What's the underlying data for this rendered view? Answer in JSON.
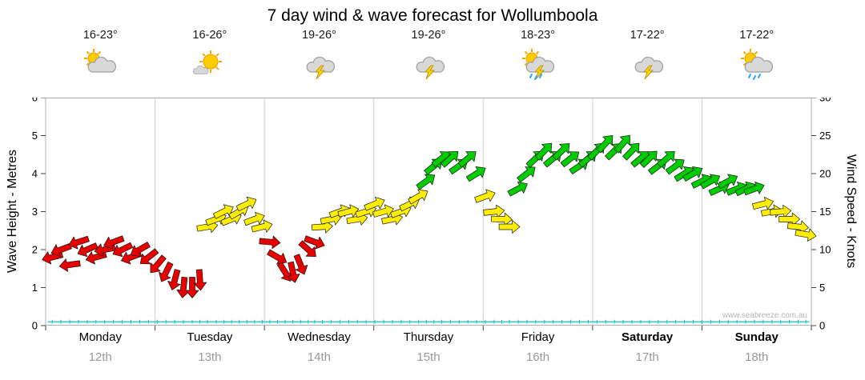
{
  "title": "7 day wind & wave forecast for Wollumboola",
  "watermark": "www.seabreeze.com.au",
  "days": [
    {
      "name": "Monday",
      "date": "12th",
      "temp": "16-23°",
      "icon_parts": [
        "sun",
        "cloud"
      ],
      "bold": false
    },
    {
      "name": "Tuesday",
      "date": "13th",
      "temp": "16-26°",
      "icon_parts": [
        "sun-big",
        "cloud-small"
      ],
      "bold": false
    },
    {
      "name": "Wednesday",
      "date": "14th",
      "temp": "19-26°",
      "icon_parts": [
        "cloud",
        "lightning"
      ],
      "bold": false
    },
    {
      "name": "Thursday",
      "date": "15th",
      "temp": "19-26°",
      "icon_parts": [
        "cloud",
        "lightning"
      ],
      "bold": false
    },
    {
      "name": "Friday",
      "date": "16th",
      "temp": "18-23°",
      "icon_parts": [
        "sun",
        "cloud",
        "lightning",
        "rain"
      ],
      "bold": false
    },
    {
      "name": "Saturday",
      "date": "17th",
      "temp": "17-22°",
      "icon_parts": [
        "cloud",
        "lightning"
      ],
      "bold": true
    },
    {
      "name": "Sunday",
      "date": "18th",
      "temp": "17-22°",
      "icon_parts": [
        "sun",
        "cloud",
        "rain"
      ],
      "bold": true
    }
  ],
  "chart_data": {
    "type": "wind-arrow-forecast",
    "x_unit": "days (0 = Monday 12th 00:00, 7 = end Sunday 18th)",
    "left_axis": {
      "label": "Wave Height - Metres",
      "min": 0,
      "max": 6,
      "tick_step": 1
    },
    "right_axis": {
      "label": "Wind Speed - Knots",
      "min": 0,
      "max": 30,
      "tick_step": 5
    },
    "speed_color_thresholds": {
      "red_below_knots": 12,
      "yellow_below_knots": 18,
      "green_at_or_above_knots": 18
    },
    "colors": {
      "red": "#e60000",
      "yellow": "#ffee00",
      "green": "#00cc00",
      "wave": "#00c8c8",
      "grid": "#cfcfcf",
      "frame": "#b0b0b0"
    },
    "wave_height_m": [
      [
        0,
        0.1
      ],
      [
        7,
        0.1
      ]
    ],
    "wind_points": [
      [
        0.06,
        9,
        256
      ],
      [
        0.14,
        10,
        250
      ],
      [
        0.22,
        8,
        262
      ],
      [
        0.3,
        11,
        252
      ],
      [
        0.38,
        10,
        246
      ],
      [
        0.46,
        9,
        255
      ],
      [
        0.54,
        10,
        260
      ],
      [
        0.62,
        11,
        250
      ],
      [
        0.7,
        10,
        244
      ],
      [
        0.78,
        9,
        250
      ],
      [
        0.86,
        10,
        240
      ],
      [
        0.94,
        9,
        232
      ],
      [
        1.02,
        8,
        220
      ],
      [
        1.1,
        7,
        206
      ],
      [
        1.18,
        6,
        195
      ],
      [
        1.26,
        5,
        186
      ],
      [
        1.34,
        5,
        180
      ],
      [
        1.41,
        6,
        176
      ],
      [
        1.48,
        13,
        80
      ],
      [
        1.56,
        14,
        70
      ],
      [
        1.63,
        15,
        64
      ],
      [
        1.7,
        14,
        68
      ],
      [
        1.77,
        15,
        60
      ],
      [
        1.84,
        16,
        64
      ],
      [
        1.91,
        14,
        70
      ],
      [
        1.98,
        13,
        76
      ],
      [
        2.05,
        11,
        95
      ],
      [
        2.12,
        9,
        120
      ],
      [
        2.19,
        7,
        148
      ],
      [
        2.26,
        7,
        168
      ],
      [
        2.33,
        8,
        158
      ],
      [
        2.4,
        10,
        132
      ],
      [
        2.46,
        11,
        110
      ],
      [
        2.53,
        13,
        86
      ],
      [
        2.61,
        14,
        78
      ],
      [
        2.69,
        15,
        70
      ],
      [
        2.77,
        15,
        75
      ],
      [
        2.85,
        14,
        80
      ],
      [
        2.93,
        15,
        72
      ],
      [
        3.01,
        16,
        68
      ],
      [
        3.09,
        15,
        74
      ],
      [
        3.17,
        14,
        78
      ],
      [
        3.25,
        15,
        70
      ],
      [
        3.33,
        16,
        64
      ],
      [
        3.41,
        17,
        60
      ],
      [
        3.48,
        19,
        54
      ],
      [
        3.55,
        21,
        50
      ],
      [
        3.62,
        22,
        52
      ],
      [
        3.7,
        22,
        48
      ],
      [
        3.78,
        21,
        55
      ],
      [
        3.86,
        22,
        50
      ],
      [
        3.94,
        20,
        58
      ],
      [
        4.02,
        17,
        70
      ],
      [
        4.1,
        15,
        84
      ],
      [
        4.17,
        14,
        92
      ],
      [
        4.24,
        13,
        90
      ],
      [
        4.32,
        18,
        62
      ],
      [
        4.4,
        20,
        52
      ],
      [
        4.48,
        22,
        46
      ],
      [
        4.56,
        23,
        44
      ],
      [
        4.64,
        22,
        50
      ],
      [
        4.72,
        23,
        46
      ],
      [
        4.8,
        22,
        52
      ],
      [
        4.88,
        21,
        56
      ],
      [
        4.96,
        22,
        50
      ],
      [
        5.04,
        23,
        44
      ],
      [
        5.12,
        24,
        42
      ],
      [
        5.2,
        23,
        46
      ],
      [
        5.28,
        24,
        40
      ],
      [
        5.36,
        23,
        44
      ],
      [
        5.44,
        22,
        50
      ],
      [
        5.52,
        22,
        46
      ],
      [
        5.6,
        21,
        52
      ],
      [
        5.68,
        22,
        48
      ],
      [
        5.76,
        21,
        54
      ],
      [
        5.84,
        20,
        58
      ],
      [
        5.92,
        20,
        60
      ],
      [
        6.0,
        19,
        64
      ],
      [
        6.08,
        19,
        60
      ],
      [
        6.16,
        18,
        66
      ],
      [
        6.24,
        19,
        62
      ],
      [
        6.32,
        18,
        68
      ],
      [
        6.4,
        18,
        64
      ],
      [
        6.48,
        18,
        70
      ],
      [
        6.56,
        16,
        76
      ],
      [
        6.64,
        15,
        80
      ],
      [
        6.72,
        15,
        85
      ],
      [
        6.8,
        14,
        90
      ],
      [
        6.88,
        13,
        96
      ],
      [
        6.95,
        12,
        100
      ]
    ]
  }
}
